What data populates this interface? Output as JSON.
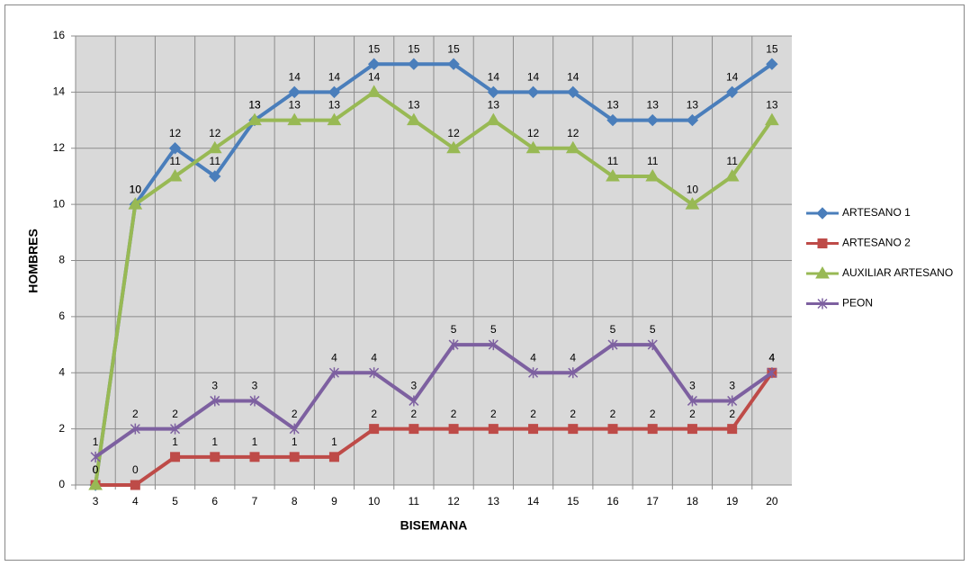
{
  "chart_data": {
    "type": "line",
    "xlabel": "BISEMANA",
    "ylabel": "HOMBRES",
    "categories": [
      "3",
      "4",
      "5",
      "6",
      "7",
      "8",
      "9",
      "10",
      "11",
      "12",
      "13",
      "14",
      "15",
      "16",
      "17",
      "18",
      "19",
      "20"
    ],
    "series": [
      {
        "name": "ARTESANO 1",
        "color": "#4a7ebb",
        "marker": "diamond",
        "values": [
          0,
          10,
          12,
          11,
          13,
          14,
          14,
          15,
          15,
          15,
          14,
          14,
          14,
          13,
          13,
          13,
          14,
          15
        ]
      },
      {
        "name": "ARTESANO 2",
        "color": "#be4b48",
        "marker": "square",
        "values": [
          0,
          0,
          1,
          1,
          1,
          1,
          1,
          2,
          2,
          2,
          2,
          2,
          2,
          2,
          2,
          2,
          2,
          4
        ]
      },
      {
        "name": "AUXILIAR ARTESANO",
        "color": "#98b954",
        "marker": "triangle",
        "values": [
          0,
          10,
          11,
          12,
          13,
          13,
          13,
          14,
          13,
          12,
          13,
          12,
          12,
          11,
          11,
          10,
          11,
          13
        ]
      },
      {
        "name": "PEON",
        "color": "#7d60a0",
        "marker": "x",
        "values": [
          1,
          2,
          2,
          3,
          3,
          2,
          4,
          4,
          3,
          5,
          5,
          4,
          4,
          5,
          5,
          3,
          3,
          4
        ]
      }
    ],
    "ylim": [
      0,
      16
    ],
    "yticks": [
      0,
      2,
      4,
      6,
      8,
      10,
      12,
      14,
      16
    ],
    "grid": true,
    "legend": "right",
    "data_labels": true
  }
}
